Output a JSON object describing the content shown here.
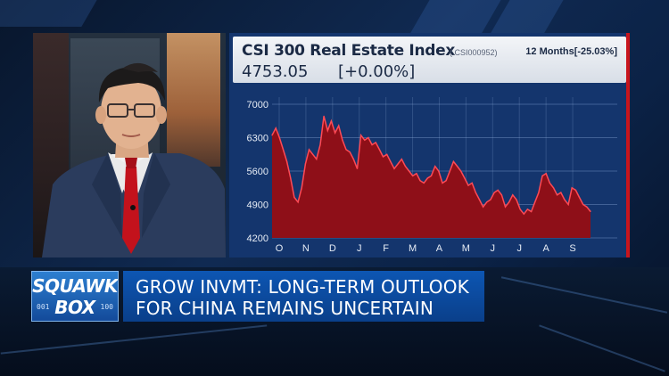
{
  "headline": {
    "line1": "GROW INVMT: LONG-TERM OUTLOOK",
    "line2": "FOR CHINA REMAINS UNCERTAIN"
  },
  "show_logo": {
    "line1": "SQUAWK",
    "line2": "BOX",
    "digits_left": "001",
    "digits_right": "100"
  },
  "chart_header": {
    "title": "CSI 300 Real Estate Index",
    "ric": "(.CSI000952)",
    "period": "12 Months[-25.03%]",
    "last_value": "4753.05",
    "change": "[+0.00%]"
  },
  "colors": {
    "panel_bg": "#14356d",
    "area_fill": "#8e0f18",
    "area_line": "#ff4a55",
    "accent_red": "#c8151d",
    "headline_bg": "#0d56b3"
  },
  "chart_data": {
    "type": "area",
    "title": "CSI 300 Real Estate Index",
    "xlabel": "",
    "ylabel": "",
    "ylim": [
      4200,
      7000
    ],
    "yticks": [
      7000,
      6300,
      5600,
      4900,
      4200
    ],
    "months": [
      "O",
      "N",
      "D",
      "J",
      "F",
      "M",
      "A",
      "M",
      "J",
      "J",
      "A",
      "S"
    ],
    "grid": true,
    "series": [
      {
        "values": [
          6350,
          6500,
          6300,
          6050,
          5800,
          5450,
          5050,
          4950,
          5250,
          5750,
          6050,
          5950,
          5850,
          6150,
          6750,
          6450,
          6650,
          6400,
          6550,
          6250,
          6050,
          6000,
          5850,
          5650,
          6350,
          6250,
          6300,
          6150,
          6200,
          6050,
          5900,
          5950,
          5800,
          5650,
          5750,
          5850,
          5700,
          5600,
          5500,
          5550,
          5400,
          5350,
          5450,
          5500,
          5700,
          5600,
          5350,
          5400,
          5600,
          5800,
          5700,
          5600,
          5450,
          5300,
          5350,
          5150,
          5000,
          4850,
          4950,
          5000,
          5150,
          5200,
          5100,
          4850,
          4950,
          5100,
          5000,
          4800,
          4700,
          4800,
          4750,
          4950,
          5150,
          5500,
          5550,
          5350,
          5250,
          5100,
          5150,
          5000,
          4900,
          5250,
          5200,
          5050,
          4900,
          4850,
          4753
        ]
      }
    ]
  }
}
